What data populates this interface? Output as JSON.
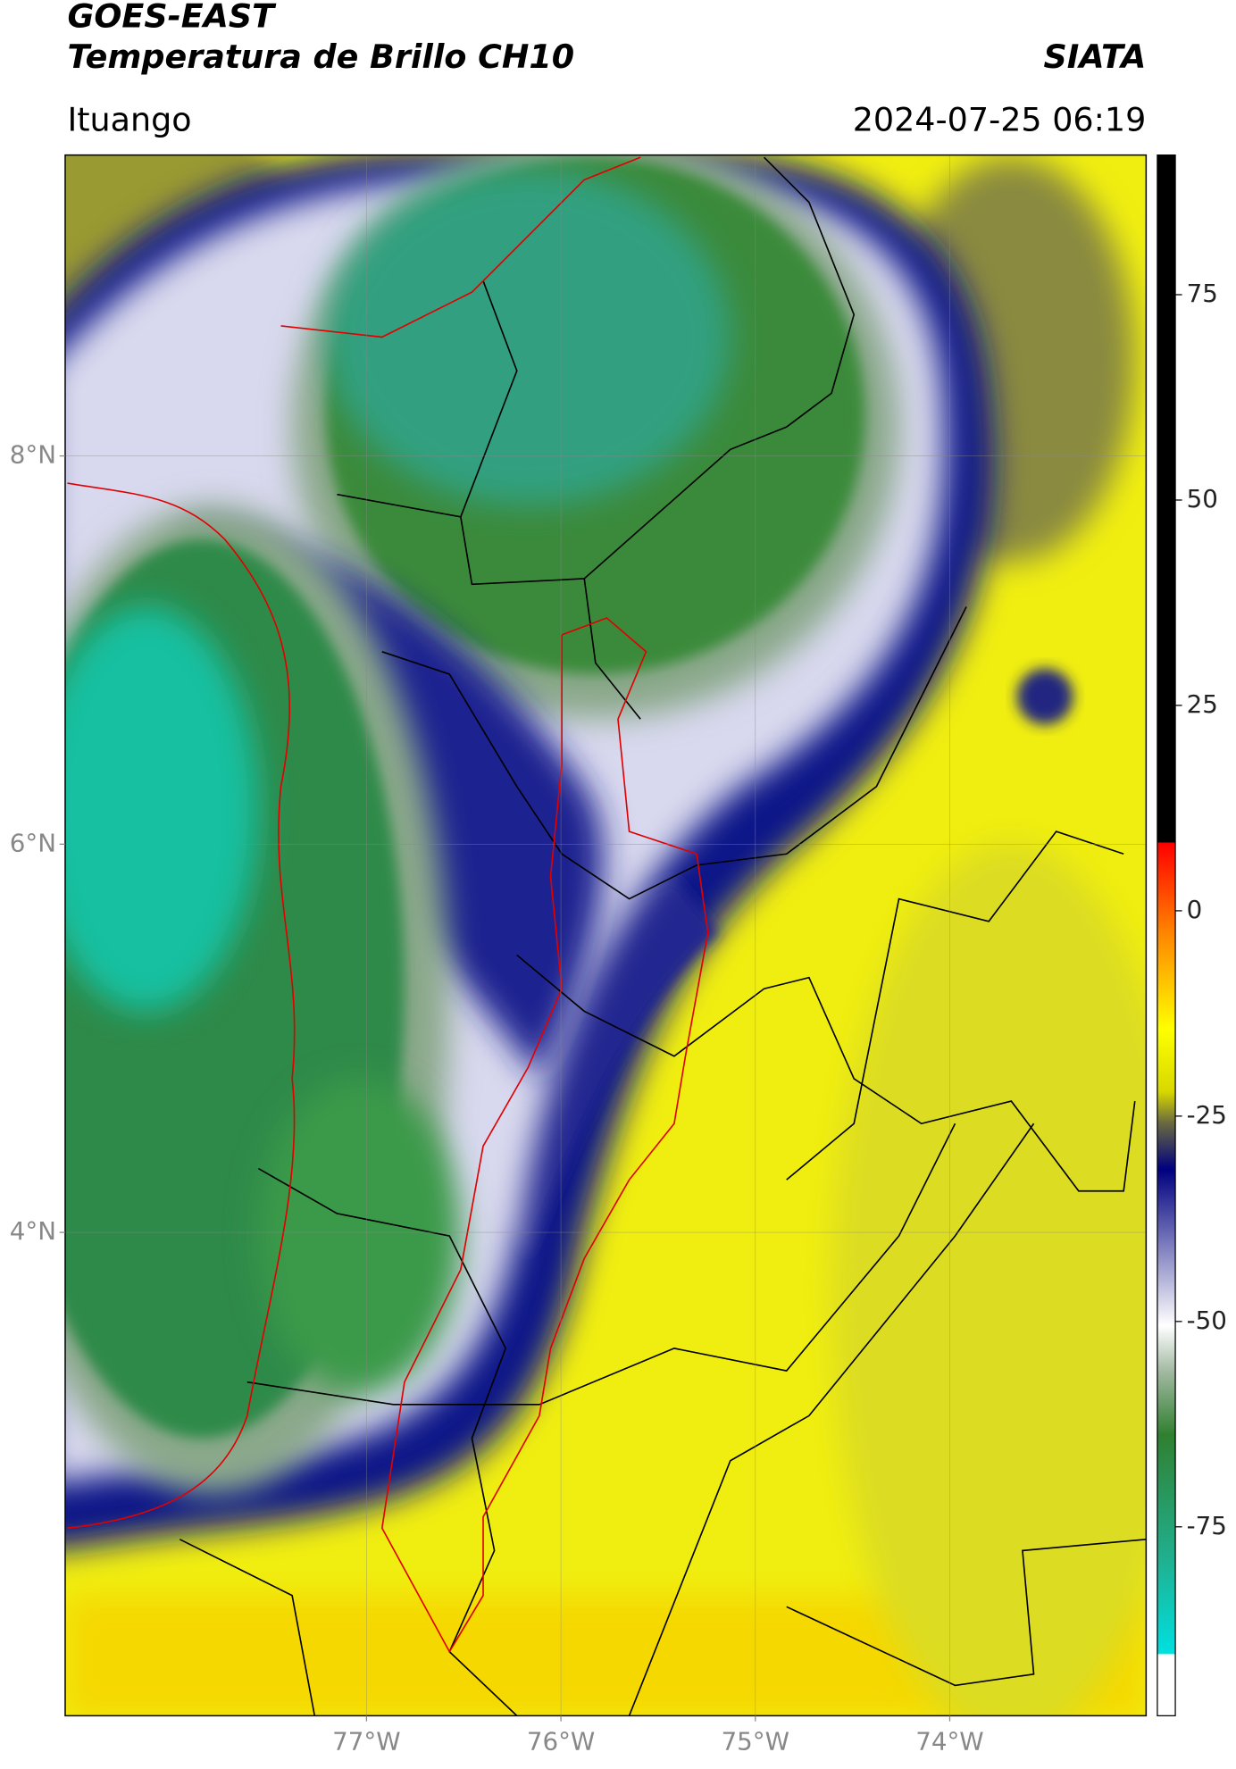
{
  "header": {
    "title": "GOES-EAST",
    "subtitle": "Temperatura de Brillo CH10",
    "brand": "SIATA",
    "location": "Ituango",
    "datetime": "2024-07-25 06:19"
  },
  "map": {
    "lonlim": [
      -78.55,
      -72.99
    ],
    "latlim": [
      1.51,
      9.55
    ],
    "lat_ticks": [
      {
        "value": 8,
        "label": "8°N"
      },
      {
        "value": 6,
        "label": "6°N"
      },
      {
        "value": 4,
        "label": "4°N"
      }
    ],
    "lon_ticks": [
      {
        "value": -77,
        "label": "77°W"
      },
      {
        "value": -76,
        "label": "76°W"
      },
      {
        "value": -75,
        "label": "75°W"
      },
      {
        "value": -74,
        "label": "74°W"
      }
    ]
  },
  "colorbar": {
    "lim": [
      -98,
      92
    ],
    "ticks": [
      75,
      50,
      25,
      0,
      -25,
      -50,
      -75
    ]
  }
}
